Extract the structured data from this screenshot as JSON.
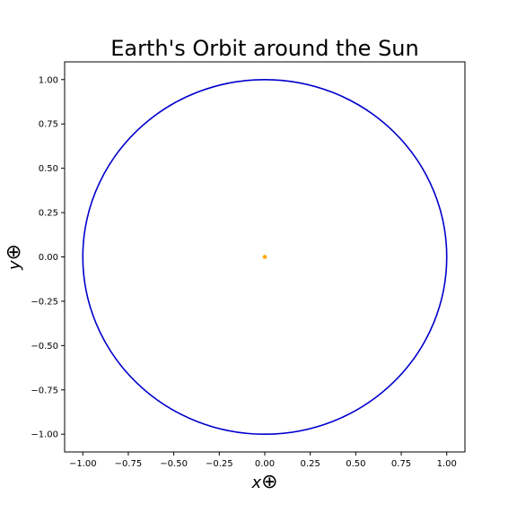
{
  "chart_data": {
    "type": "line",
    "title": "Earth's Orbit around the Sun",
    "xlabel": "x⊕",
    "ylabel": "y⊕",
    "xlabel_main": "x",
    "ylabel_main": "y",
    "label_symbol": "⊕",
    "xlim": [
      -1.1,
      1.1
    ],
    "ylim": [
      -1.1,
      1.1
    ],
    "x_ticks": [
      -1.0,
      -0.75,
      -0.5,
      -0.25,
      0.0,
      0.25,
      0.5,
      0.75,
      1.0
    ],
    "y_ticks": [
      -1.0,
      -0.75,
      -0.5,
      -0.25,
      0.0,
      0.25,
      0.5,
      0.75,
      1.0
    ],
    "x_tick_labels": [
      "−1.00",
      "−0.75",
      "−0.50",
      "−0.25",
      "0.00",
      "0.25",
      "0.50",
      "0.75",
      "1.00"
    ],
    "y_tick_labels": [
      "−1.00",
      "−0.75",
      "−0.50",
      "−0.25",
      "0.00",
      "0.25",
      "0.50",
      "0.75",
      "1.00"
    ],
    "grid": false,
    "series": [
      {
        "kind": "orbit",
        "color": "#0000cc",
        "center": [
          0,
          0
        ],
        "radius": 1.0
      },
      {
        "kind": "sun",
        "color": "#ffa500",
        "x": [
          0.0
        ],
        "y": [
          0.0
        ]
      }
    ]
  }
}
